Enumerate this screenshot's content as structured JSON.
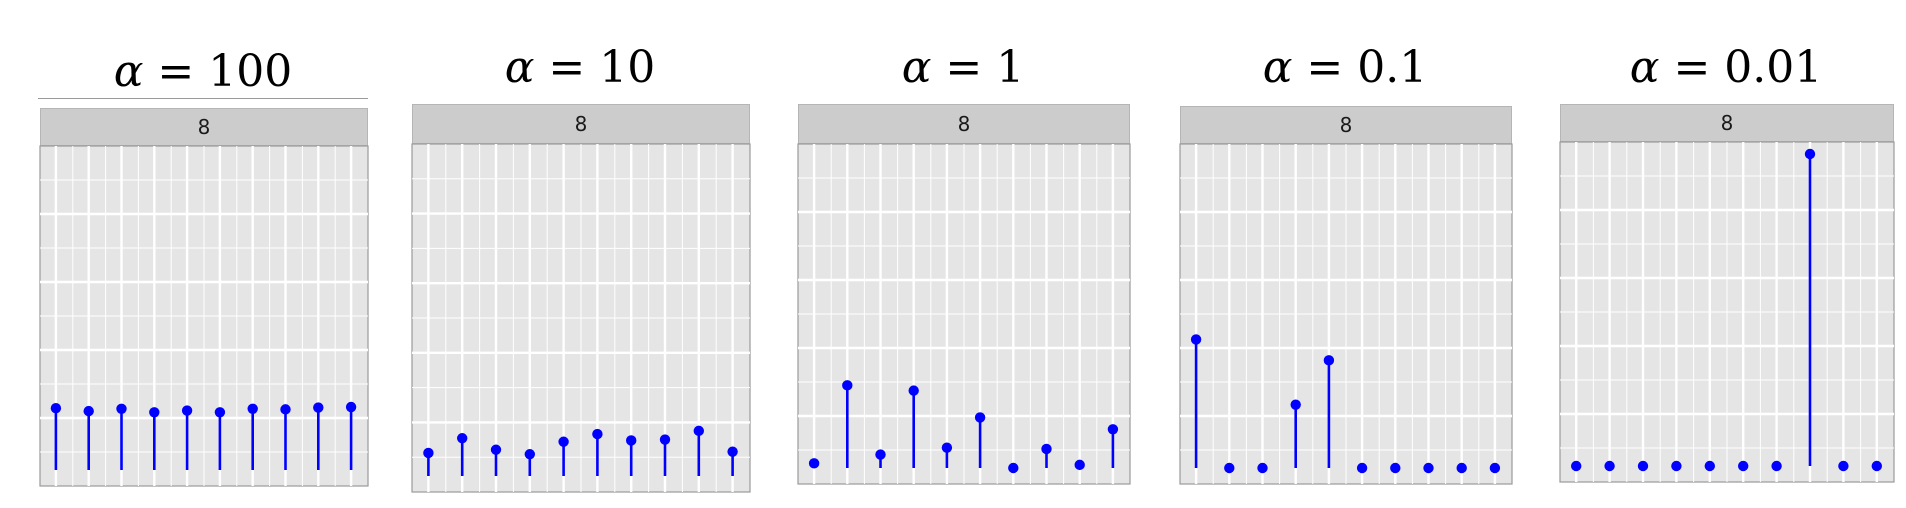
{
  "colors": {
    "panel_bg": "#e5e5e5",
    "grid": "#ffffff",
    "strip_bg": "#cccccc",
    "stem": "#0000ff"
  },
  "chart_data": [
    {
      "type": "stem",
      "title": "α = 100",
      "title_symbol": "α",
      "title_rest": " = 100",
      "facet_label": "8",
      "x": [
        1,
        2,
        3,
        4,
        5,
        6,
        7,
        8,
        9,
        10
      ],
      "values": [
        0.105,
        0.1,
        0.104,
        0.098,
        0.101,
        0.098,
        0.104,
        0.103,
        0.106,
        0.107
      ],
      "ylim": [
        0,
        0.53
      ],
      "grid": true
    },
    {
      "type": "stem",
      "title": "α = 10",
      "title_symbol": "α",
      "title_rest": " = 10",
      "facet_label": "8",
      "x": [
        1,
        2,
        3,
        4,
        5,
        6,
        7,
        8,
        9,
        10
      ],
      "values": [
        0.072,
        0.118,
        0.082,
        0.068,
        0.107,
        0.131,
        0.111,
        0.114,
        0.141,
        0.076
      ],
      "ylim": [
        0,
        1.0
      ],
      "grid": true
    },
    {
      "type": "stem",
      "title": "α = 1",
      "title_symbol": "α",
      "title_rest": " = 1",
      "facet_label": "8",
      "x": [
        1,
        2,
        3,
        4,
        5,
        6,
        7,
        8,
        9,
        10
      ],
      "values": [
        0.015,
        0.265,
        0.043,
        0.248,
        0.065,
        0.162,
        0.0,
        0.061,
        0.01,
        0.124
      ],
      "ylim": [
        0,
        1.0
      ],
      "grid": true
    },
    {
      "type": "stem",
      "title": "α = 0.1",
      "title_symbol": "α",
      "title_rest": " = 0.1",
      "facet_label": "8",
      "x": [
        1,
        2,
        3,
        4,
        5,
        6,
        7,
        8,
        9,
        10
      ],
      "values": [
        0.412,
        0.0,
        0.0,
        0.203,
        0.345,
        0.0,
        0.0,
        0.0,
        0.0,
        0.0
      ],
      "ylim": [
        0,
        1.0
      ],
      "grid": true
    },
    {
      "type": "stem",
      "title": "α = 0.01",
      "title_symbol": "α",
      "title_rest": " = 0.01",
      "facet_label": "8",
      "x": [
        1,
        2,
        3,
        4,
        5,
        6,
        7,
        8,
        9,
        10
      ],
      "values": [
        0.0,
        0.0,
        0.0,
        0.0,
        0.0,
        0.0,
        0.0,
        1.0,
        0.0,
        0.0
      ],
      "ylim": [
        0,
        1.0
      ],
      "grid": true
    }
  ]
}
